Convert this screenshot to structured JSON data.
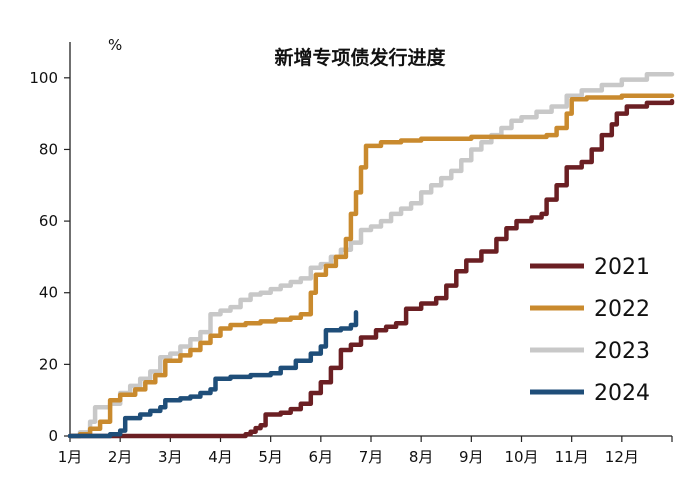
{
  "chart_data": {
    "type": "line",
    "title": "新增专项债发行进度",
    "ylabel": "%",
    "xlabel": "",
    "ylim": [
      0,
      110
    ],
    "yticks": [
      0,
      20,
      40,
      60,
      80,
      100
    ],
    "xlim": [
      1,
      13
    ],
    "x_tick_labels": [
      "1月",
      "2月",
      "3月",
      "4月",
      "5月",
      "6月",
      "7月",
      "8月",
      "9月",
      "10月",
      "11月",
      "12月"
    ],
    "grid": false,
    "legend_position": "right",
    "series": [
      {
        "name": "2021",
        "color": "#6b1f23",
        "points": [
          [
            1,
            0
          ],
          [
            3,
            0
          ],
          [
            4,
            0
          ],
          [
            4.5,
            0.5
          ],
          [
            4.6,
            1.2
          ],
          [
            4.7,
            2.2
          ],
          [
            4.8,
            3
          ],
          [
            4.9,
            6
          ],
          [
            5.2,
            6.5
          ],
          [
            5.4,
            7.5
          ],
          [
            5.6,
            9
          ],
          [
            5.8,
            12
          ],
          [
            6,
            15
          ],
          [
            6.2,
            19
          ],
          [
            6.4,
            24
          ],
          [
            6.6,
            25.5
          ],
          [
            6.8,
            27.5
          ],
          [
            7.1,
            29.5
          ],
          [
            7.3,
            30.5
          ],
          [
            7.5,
            31.5
          ],
          [
            7.7,
            35.5
          ],
          [
            8.0,
            37
          ],
          [
            8.3,
            38.5
          ],
          [
            8.5,
            42
          ],
          [
            8.7,
            46
          ],
          [
            8.9,
            49
          ],
          [
            9.2,
            51.5
          ],
          [
            9.5,
            55
          ],
          [
            9.7,
            58
          ],
          [
            9.9,
            60
          ],
          [
            10.2,
            61
          ],
          [
            10.4,
            62
          ],
          [
            10.5,
            66
          ],
          [
            10.7,
            70
          ],
          [
            10.9,
            75
          ],
          [
            11.2,
            76.5
          ],
          [
            11.4,
            80
          ],
          [
            11.6,
            84
          ],
          [
            11.8,
            87
          ],
          [
            11.9,
            90
          ],
          [
            12.1,
            92
          ],
          [
            12.5,
            93
          ],
          [
            13,
            93.5
          ]
        ]
      },
      {
        "name": "2022",
        "color": "#c98a2e",
        "points": [
          [
            1,
            0
          ],
          [
            1.2,
            0.5
          ],
          [
            1.4,
            2
          ],
          [
            1.6,
            4
          ],
          [
            1.8,
            10
          ],
          [
            2.0,
            11.5
          ],
          [
            2.3,
            13
          ],
          [
            2.5,
            15
          ],
          [
            2.7,
            17
          ],
          [
            2.9,
            21
          ],
          [
            3.2,
            22.5
          ],
          [
            3.4,
            24
          ],
          [
            3.6,
            26
          ],
          [
            3.8,
            28
          ],
          [
            4.0,
            30
          ],
          [
            4.2,
            31
          ],
          [
            4.5,
            31.5
          ],
          [
            4.8,
            32
          ],
          [
            5.1,
            32.5
          ],
          [
            5.4,
            33
          ],
          [
            5.6,
            34
          ],
          [
            5.8,
            40
          ],
          [
            5.9,
            45
          ],
          [
            6.1,
            47.5
          ],
          [
            6.3,
            50
          ],
          [
            6.5,
            55
          ],
          [
            6.6,
            62
          ],
          [
            6.7,
            68
          ],
          [
            6.8,
            75
          ],
          [
            6.9,
            81
          ],
          [
            7.2,
            82
          ],
          [
            7.6,
            82.5
          ],
          [
            8.0,
            83
          ],
          [
            8.5,
            83
          ],
          [
            9,
            83.5
          ],
          [
            9.5,
            83.5
          ],
          [
            10,
            83.5
          ],
          [
            10.5,
            84
          ],
          [
            10.7,
            86
          ],
          [
            10.9,
            90
          ],
          [
            11,
            94
          ],
          [
            11.3,
            94.5
          ],
          [
            12,
            95
          ],
          [
            13,
            95
          ]
        ]
      },
      {
        "name": "2023",
        "color": "#c8c8c8",
        "points": [
          [
            1,
            0
          ],
          [
            1.2,
            1
          ],
          [
            1.4,
            4
          ],
          [
            1.5,
            8
          ],
          [
            1.8,
            9
          ],
          [
            2.0,
            12
          ],
          [
            2.2,
            14
          ],
          [
            2.4,
            16
          ],
          [
            2.6,
            18
          ],
          [
            2.8,
            22
          ],
          [
            3.0,
            23
          ],
          [
            3.2,
            25
          ],
          [
            3.4,
            27
          ],
          [
            3.6,
            29
          ],
          [
            3.8,
            34
          ],
          [
            4.0,
            35
          ],
          [
            4.2,
            36
          ],
          [
            4.4,
            38
          ],
          [
            4.6,
            39.5
          ],
          [
            4.8,
            40
          ],
          [
            5.0,
            41
          ],
          [
            5.2,
            42
          ],
          [
            5.4,
            43
          ],
          [
            5.6,
            44
          ],
          [
            5.8,
            47
          ],
          [
            6.0,
            48
          ],
          [
            6.2,
            50
          ],
          [
            6.4,
            52
          ],
          [
            6.6,
            54
          ],
          [
            6.8,
            57.5
          ],
          [
            7.0,
            58.5
          ],
          [
            7.2,
            60
          ],
          [
            7.4,
            62
          ],
          [
            7.6,
            63.5
          ],
          [
            7.8,
            65
          ],
          [
            8.0,
            68
          ],
          [
            8.2,
            70
          ],
          [
            8.4,
            72
          ],
          [
            8.6,
            74
          ],
          [
            8.8,
            77
          ],
          [
            9.0,
            80
          ],
          [
            9.2,
            82
          ],
          [
            9.4,
            84
          ],
          [
            9.6,
            86
          ],
          [
            9.8,
            88
          ],
          [
            10.0,
            89
          ],
          [
            10.3,
            90.5
          ],
          [
            10.6,
            92
          ],
          [
            10.9,
            95
          ],
          [
            11.2,
            96.5
          ],
          [
            11.6,
            98
          ],
          [
            12,
            99.5
          ],
          [
            12.5,
            101
          ],
          [
            13,
            101
          ]
        ]
      },
      {
        "name": "2024",
        "color": "#1f4e79",
        "points": [
          [
            1,
            0
          ],
          [
            1.5,
            0
          ],
          [
            1.8,
            0.5
          ],
          [
            2.0,
            1.5
          ],
          [
            2.1,
            5
          ],
          [
            2.4,
            6
          ],
          [
            2.6,
            7
          ],
          [
            2.8,
            8
          ],
          [
            2.9,
            10
          ],
          [
            3.2,
            10.5
          ],
          [
            3.4,
            11
          ],
          [
            3.6,
            12
          ],
          [
            3.8,
            13
          ],
          [
            3.9,
            16
          ],
          [
            4.2,
            16.5
          ],
          [
            4.6,
            17
          ],
          [
            5.0,
            17.5
          ],
          [
            5.2,
            19
          ],
          [
            5.5,
            21
          ],
          [
            5.8,
            23
          ],
          [
            6.0,
            25
          ],
          [
            6.1,
            29.5
          ],
          [
            6.4,
            30
          ],
          [
            6.6,
            31
          ],
          [
            6.7,
            34.5
          ]
        ]
      }
    ]
  }
}
